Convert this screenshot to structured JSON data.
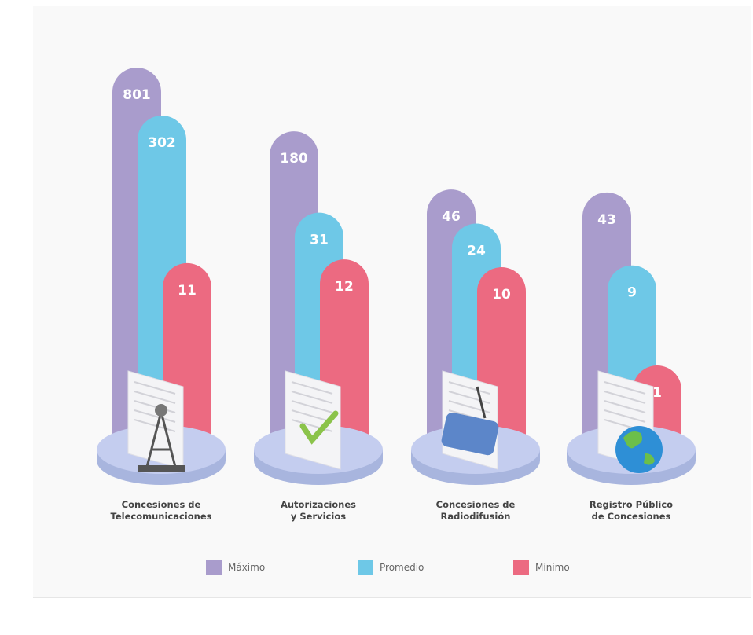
{
  "chart_data": {
    "type": "bar",
    "categories": [
      "Concesiones de\nTelecomunicaciones",
      "Autorizaciones\ny Servicios",
      "Concesiones de\nRadiodifusión",
      "Registro Público\nde Concesiones"
    ],
    "series": [
      {
        "name": "Máximo",
        "color": "#a99ccc",
        "values": [
          801,
          180,
          46,
          43
        ]
      },
      {
        "name": "Promedio",
        "color": "#6ec8e7",
        "values": [
          302,
          31,
          24,
          9
        ]
      },
      {
        "name": "Mínimo",
        "color": "#ec6a81",
        "values": [
          11,
          12,
          10,
          1
        ]
      }
    ]
  }
}
